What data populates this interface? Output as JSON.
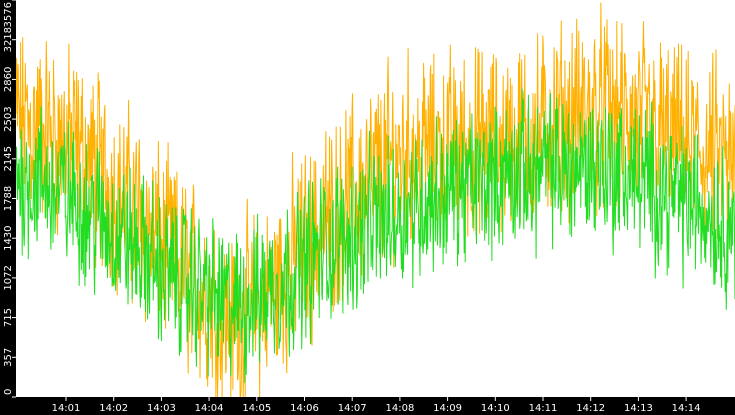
{
  "chart_data": {
    "type": "line",
    "title": "",
    "xlabel": "",
    "ylabel": "",
    "ylim": [
      0,
      3576
    ],
    "grid": false,
    "legend": "none",
    "colors": {
      "background": "#ffffff",
      "axis_band": "#000000",
      "tick_text": "#ffffff",
      "series_a": "#ffb000",
      "series_b": "#22dd22"
    },
    "y_ticks": [
      "0",
      "357",
      "715",
      "1072",
      "1430",
      "1788",
      "2145",
      "2503",
      "2860",
      "3218",
      "3576"
    ],
    "x_ticks": [
      "14:01",
      "14:02",
      "14:03",
      "14:04",
      "14:05",
      "14:06",
      "14:07",
      "14:08",
      "14:09",
      "14:10",
      "14:11",
      "14:12",
      "14:13",
      "14:14"
    ],
    "x_range_minutes": [
      14.017,
      15.1
    ],
    "samples": 1400,
    "series": [
      {
        "color": "#ffb000",
        "trend": [
          [
            14.017,
            2500
          ],
          [
            14.1,
            2300
          ],
          [
            14.25,
            1300
          ],
          [
            14.35,
            600
          ],
          [
            14.5,
            1700
          ],
          [
            14.6,
            2200
          ],
          [
            14.75,
            2300
          ],
          [
            14.9,
            2600
          ],
          [
            15.05,
            2200
          ],
          [
            15.25,
            1500
          ],
          [
            15.4,
            1200
          ],
          [
            15.55,
            2500
          ],
          [
            15.7,
            2700
          ],
          [
            15.85,
            2500
          ],
          [
            16.05,
            1600
          ],
          [
            16.25,
            1700
          ],
          [
            16.45,
            1400
          ],
          [
            16.65,
            1100
          ],
          [
            16.85,
            1000
          ],
          [
            17.0,
            1700
          ],
          [
            17.2,
            2100
          ],
          [
            17.4,
            2400
          ],
          [
            17.55,
            1600
          ],
          [
            17.75,
            1600
          ],
          [
            17.95,
            2000
          ],
          [
            18.15,
            2200
          ],
          [
            18.35,
            2100
          ],
          [
            18.55,
            2400
          ],
          [
            18.75,
            2600
          ],
          [
            18.9,
            2700
          ],
          [
            19.1,
            2500
          ],
          [
            19.3,
            2400
          ],
          [
            19.55,
            2300
          ],
          [
            19.75,
            2200
          ],
          [
            20.0,
            2200
          ],
          [
            20.15,
            1700
          ]
        ]
      },
      {
        "color": "#22dd22",
        "trend": [
          [
            14.017,
            2000
          ],
          [
            14.1,
            1800
          ],
          [
            14.25,
            1100
          ],
          [
            14.35,
            800
          ],
          [
            14.5,
            1400
          ],
          [
            14.6,
            1700
          ],
          [
            14.75,
            2000
          ],
          [
            14.9,
            2100
          ],
          [
            15.05,
            1700
          ],
          [
            15.25,
            1100
          ],
          [
            15.4,
            1000
          ],
          [
            15.55,
            2000
          ],
          [
            15.7,
            2200
          ],
          [
            15.85,
            2000
          ],
          [
            16.05,
            1200
          ],
          [
            16.25,
            1300
          ],
          [
            16.45,
            1000
          ],
          [
            16.65,
            900
          ],
          [
            16.85,
            800
          ],
          [
            17.0,
            1400
          ],
          [
            17.2,
            1700
          ],
          [
            17.4,
            1900
          ],
          [
            17.55,
            1300
          ],
          [
            17.75,
            1300
          ],
          [
            17.95,
            1700
          ],
          [
            18.15,
            1900
          ],
          [
            18.35,
            1800
          ],
          [
            18.55,
            2000
          ],
          [
            18.75,
            2100
          ],
          [
            18.9,
            2200
          ],
          [
            19.1,
            2000
          ],
          [
            19.3,
            1900
          ],
          [
            19.55,
            1800
          ],
          [
            19.75,
            1700
          ],
          [
            20.0,
            1600
          ],
          [
            20.15,
            1300
          ]
        ]
      }
    ]
  }
}
